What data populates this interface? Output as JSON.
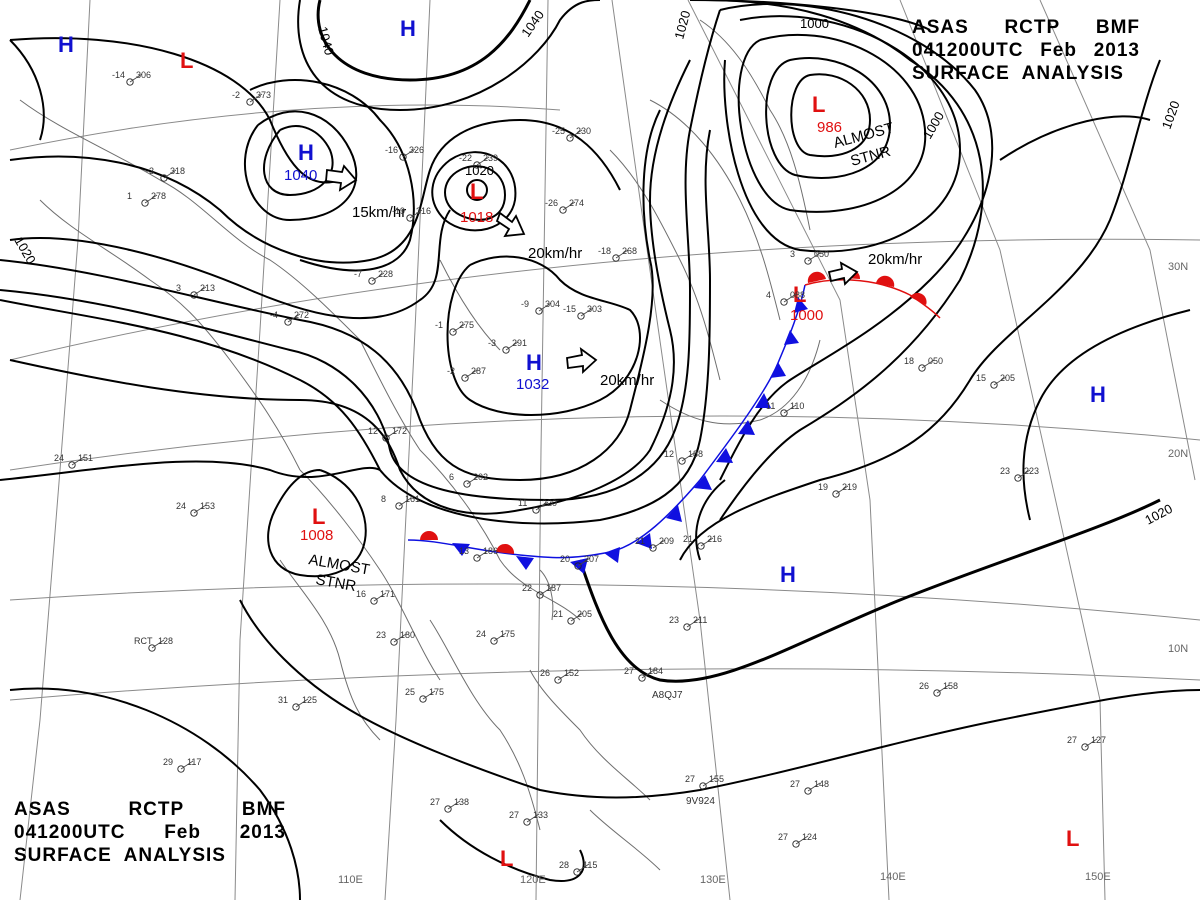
{
  "header": {
    "line1": [
      "ASAS",
      "RCTP",
      "BMF"
    ],
    "line2": [
      "041200UTC",
      "Feb",
      "2013"
    ],
    "line3": "SURFACE  ANALYSIS"
  },
  "colors": {
    "high": "#1010d0",
    "low": "#e01010",
    "cold_front": "#1010e0",
    "warm_front": "#e01010",
    "isobar": "#000000",
    "grid": "#888888",
    "coast": "#777777"
  },
  "grid": {
    "longitudes": [
      "110E",
      "120E",
      "130E",
      "140E",
      "150E"
    ],
    "latitudes": [
      "30N",
      "20N",
      "10N"
    ]
  },
  "isobar_labels": [
    "1040",
    "1040",
    "1020",
    "1000",
    "1000",
    "1020",
    "1020",
    "1020",
    "1020"
  ],
  "pressure_centers": [
    {
      "type": "H",
      "value": ""
    },
    {
      "type": "L",
      "value": ""
    },
    {
      "type": "H",
      "value": ""
    },
    {
      "type": "H",
      "value": "1040"
    },
    {
      "type": "L",
      "value": "1018"
    },
    {
      "type": "L",
      "value": "986"
    },
    {
      "type": "H",
      "value": "1032"
    },
    {
      "type": "L",
      "value": "1000"
    },
    {
      "type": "L",
      "value": "1008"
    },
    {
      "type": "H",
      "value": ""
    },
    {
      "type": "H",
      "value": ""
    },
    {
      "type": "L",
      "value": ""
    },
    {
      "type": "L",
      "value": ""
    }
  ],
  "center_inner_isobar": "1020",
  "motion_labels": [
    "15km/hr",
    "20km/hr",
    "20km/hr",
    "20km/hr"
  ],
  "annotations": [
    {
      "lines": [
        "ALMOST",
        "STNR"
      ]
    },
    {
      "lines": [
        "ALMOST",
        "STNR"
      ]
    }
  ],
  "ship_ids": [
    "A8QJ7",
    "9V924"
  ],
  "station_plots": [
    {
      "t": "-14",
      "p": "306"
    },
    {
      "t": "-2",
      "p": "373"
    },
    {
      "t": "-3",
      "p": "318"
    },
    {
      "t": "-16",
      "p": "326"
    },
    {
      "t": "-22",
      "p": "239"
    },
    {
      "t": "-25",
      "p": "230"
    },
    {
      "t": "-26",
      "p": "274"
    },
    {
      "t": "-19",
      "p": "316"
    },
    {
      "t": "-18",
      "p": "268"
    },
    {
      "t": "-9",
      "p": "304"
    },
    {
      "t": "-15",
      "p": "303"
    },
    {
      "t": "-7",
      "p": "228"
    },
    {
      "t": "-3",
      "p": "291"
    },
    {
      "t": "-2",
      "p": "287"
    },
    {
      "t": "3",
      "p": "213"
    },
    {
      "t": "1",
      "p": "278"
    },
    {
      "t": "-4",
      "p": "272"
    },
    {
      "t": "-1",
      "p": "275"
    },
    {
      "t": "12",
      "p": "172"
    },
    {
      "t": "6",
      "p": "202"
    },
    {
      "t": "11",
      "p": "220"
    },
    {
      "t": "8",
      "p": "161"
    },
    {
      "t": "13",
      "p": "186"
    },
    {
      "t": "20",
      "p": "207"
    },
    {
      "t": "22",
      "p": "187"
    },
    {
      "t": "21",
      "p": "205"
    },
    {
      "t": "24",
      "p": "175"
    },
    {
      "t": "21",
      "p": "209"
    },
    {
      "t": "21",
      "p": "216"
    },
    {
      "t": "12",
      "p": "188"
    },
    {
      "t": "23",
      "p": "211"
    },
    {
      "t": "27",
      "p": "184"
    },
    {
      "t": "26",
      "p": "152"
    },
    {
      "t": "31",
      "p": "125"
    },
    {
      "t": "25",
      "p": "175"
    },
    {
      "t": "29",
      "p": "117"
    },
    {
      "t": "27",
      "p": "138"
    },
    {
      "t": "27",
      "p": "133"
    },
    {
      "t": "28",
      "p": "115"
    },
    {
      "t": "27",
      "p": "155"
    },
    {
      "t": "27",
      "p": "148"
    },
    {
      "t": "27",
      "p": "124"
    },
    {
      "t": "26",
      "p": "158"
    },
    {
      "t": "27",
      "p": "127"
    },
    {
      "t": "19",
      "p": "219"
    },
    {
      "t": "23",
      "p": "223"
    },
    {
      "t": "18",
      "p": "050"
    },
    {
      "t": "15",
      "p": "205"
    },
    {
      "t": "24",
      "p": "151"
    },
    {
      "t": "24",
      "p": "153"
    },
    {
      "t": "RCT",
      "p": "128"
    },
    {
      "t": "16",
      "p": "171"
    },
    {
      "t": "23",
      "p": "180"
    },
    {
      "t": "11",
      "p": "110"
    },
    {
      "t": "4",
      "p": "088"
    },
    {
      "t": "3",
      "p": "050"
    }
  ]
}
